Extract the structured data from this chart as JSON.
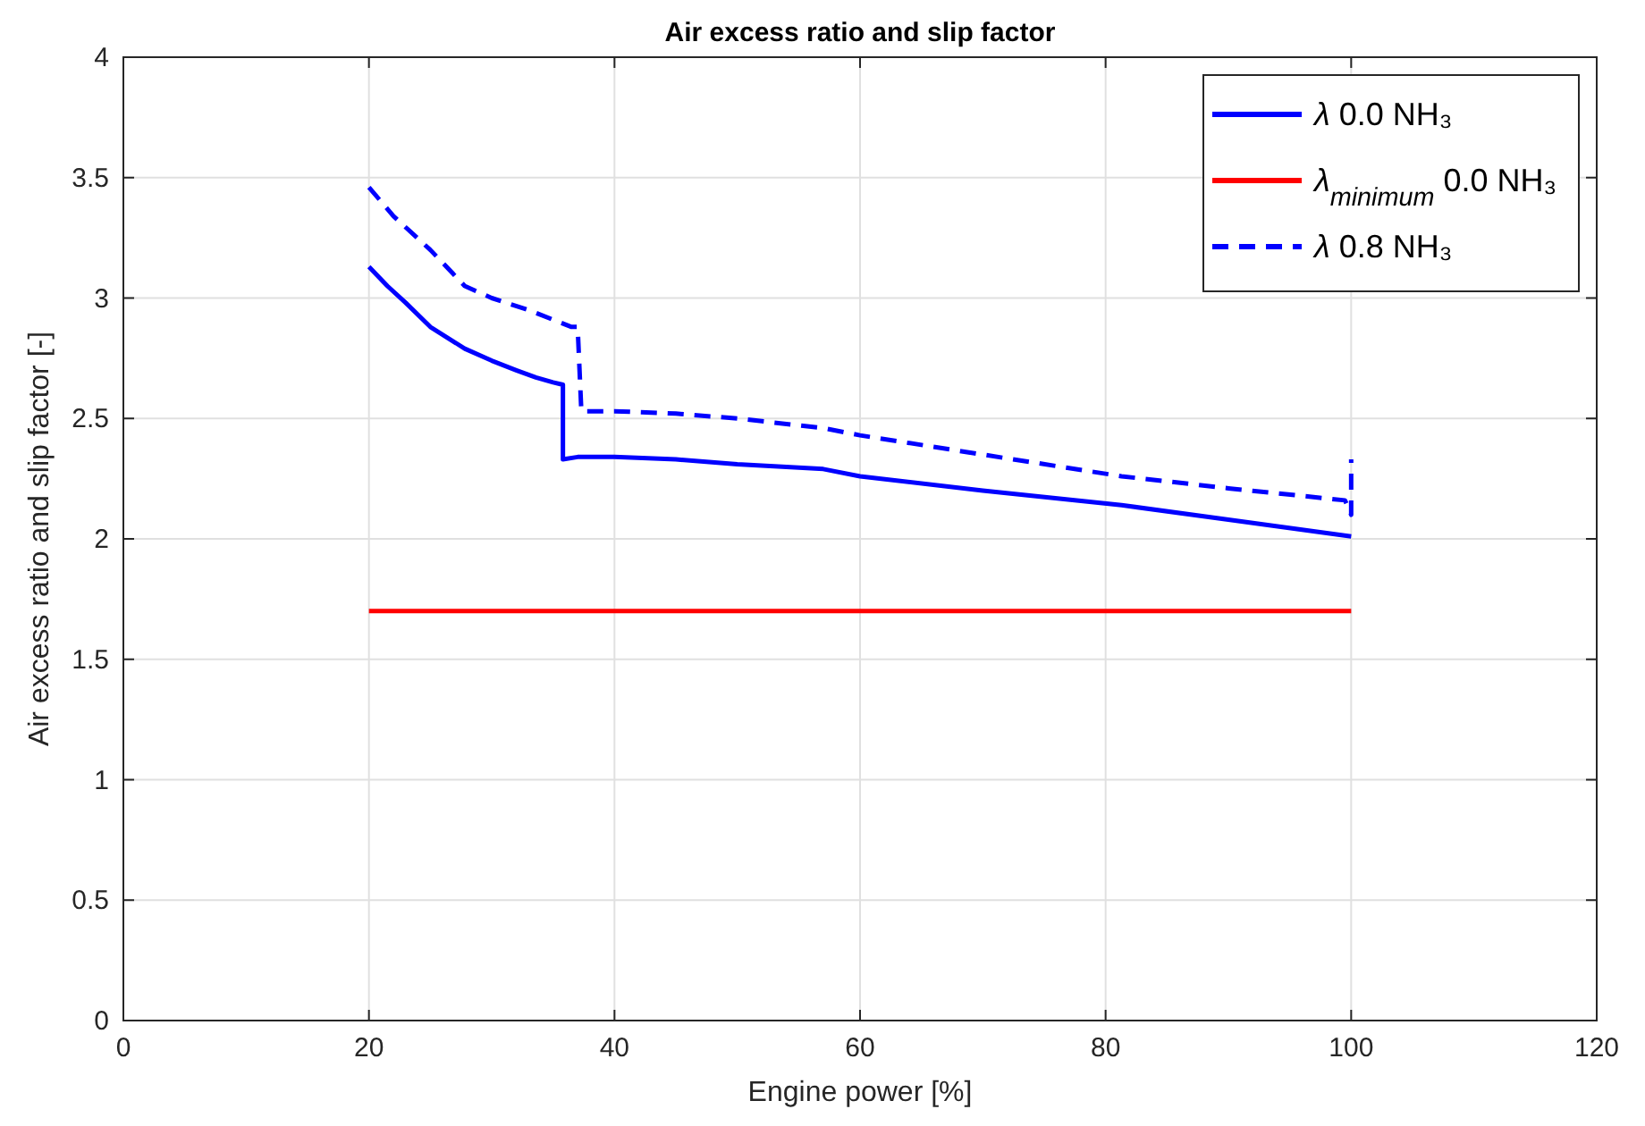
{
  "chart_data": {
    "type": "line",
    "title": "Air excess ratio and slip factor",
    "xlabel": "Engine power [%]",
    "ylabel": "Air excess ratio and slip factor [-]",
    "xlim": [
      0,
      120
    ],
    "xticks": [
      0,
      20,
      40,
      60,
      80,
      100,
      120
    ],
    "ylim": [
      0,
      4
    ],
    "yticks": [
      0,
      0.5,
      1,
      1.5,
      2,
      2.5,
      3,
      3.5,
      4
    ],
    "grid": true,
    "legend": "top right",
    "series": [
      {
        "name": "λ 0.0 NH₃",
        "color": "#0000ff",
        "line_style": "solid",
        "x": [
          20,
          21.5,
          23,
          25,
          27.8,
          30,
          32,
          33.6,
          35,
          35.8,
          35.8,
          37,
          38,
          40,
          45,
          50,
          57,
          60,
          70,
          81.3,
          90,
          100
        ],
        "values": [
          3.13,
          3.05,
          2.98,
          2.88,
          2.79,
          2.74,
          2.7,
          2.67,
          2.65,
          2.64,
          2.33,
          2.34,
          2.34,
          2.34,
          2.33,
          2.31,
          2.29,
          2.26,
          2.2,
          2.14,
          2.08,
          2.01
        ]
      },
      {
        "name": "λ$_{minimum}$ 0.0 NH₃",
        "color": "#ff0000",
        "line_style": "solid",
        "x": [
          20,
          100
        ],
        "values": [
          1.7,
          1.7
        ]
      },
      {
        "name": "λ 0.8 NH₃",
        "color": "#0000ff",
        "line_style": "dashed",
        "x": [
          20,
          22,
          25,
          27.8,
          30,
          33,
          36.5,
          37,
          37.3,
          38,
          40,
          45,
          50,
          57,
          60,
          70,
          81.3,
          90,
          99.5,
          100,
          100
        ],
        "values": [
          3.46,
          3.34,
          3.2,
          3.05,
          3.0,
          2.95,
          2.88,
          2.88,
          2.53,
          2.53,
          2.53,
          2.52,
          2.5,
          2.46,
          2.43,
          2.35,
          2.26,
          2.21,
          2.16,
          2.1,
          2.33
        ]
      }
    ]
  }
}
